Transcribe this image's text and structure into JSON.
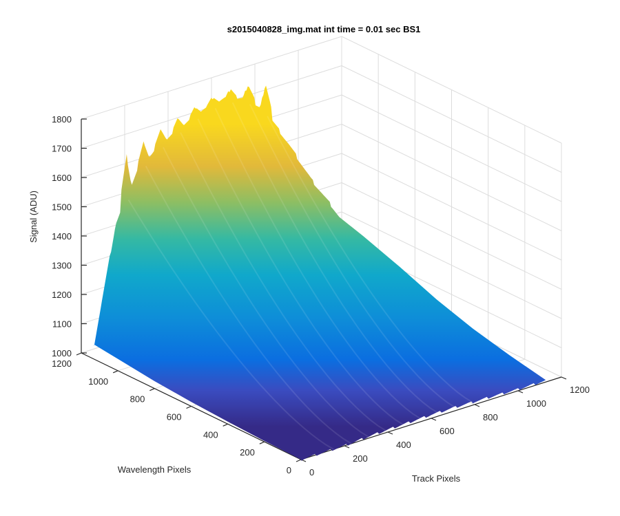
{
  "chart_data": {
    "type": "surface",
    "title": "s2015040828_img.mat int time = 0.01 sec   BS1",
    "xlabel": "Track Pixels",
    "ylabel": "Wavelength Pixels",
    "zlabel": "Signal (ADU)",
    "xlim": [
      0,
      1200
    ],
    "ylim": [
      0,
      1200
    ],
    "zlim": [
      1000,
      1800
    ],
    "x_ticks": [
      "0",
      "200",
      "400",
      "600",
      "800",
      "1000",
      "1200"
    ],
    "y_ticks": [
      "0",
      "200",
      "400",
      "600",
      "800",
      "1000",
      "1200"
    ],
    "z_ticks": [
      "1000",
      "1100",
      "1200",
      "1300",
      "1400",
      "1500",
      "1600",
      "1700",
      "1800"
    ],
    "grid": true,
    "colormap": "parula",
    "colors": {
      "low": "#352a87",
      "mid": "#0f9bd7",
      "high": "#f9fb0e"
    },
    "x": [
      0,
      100,
      200,
      300,
      400,
      500,
      600,
      700,
      800,
      900,
      1000,
      1100,
      1130
    ],
    "edge_y1130": [
      1050,
      1440,
      1600,
      1660,
      1700,
      1735,
      1750,
      1725,
      1650,
      1520,
      1380,
      1260,
      1220
    ],
    "edge_y0": [
      1000,
      1000,
      1000,
      1005,
      1008,
      1010,
      1012,
      1012,
      1010,
      1008,
      1005,
      1005,
      1005
    ],
    "edge_x1130_y": [
      0,
      200,
      400,
      600,
      800,
      1000,
      1130
    ],
    "edge_x1130_z": [
      1005,
      1030,
      1060,
      1100,
      1150,
      1195,
      1220
    ],
    "edge_x0_y": [
      0,
      200,
      400,
      600,
      800,
      1000,
      1130
    ],
    "edge_x0_z": [
      1000,
      1003,
      1008,
      1015,
      1025,
      1040,
      1050
    ],
    "peak_positions_x": [
      150,
      230,
      310,
      390,
      470,
      550,
      630,
      710,
      790
    ],
    "peak_heights_z": [
      1660,
      1690,
      1715,
      1735,
      1755,
      1770,
      1780,
      1775,
      1760
    ]
  }
}
